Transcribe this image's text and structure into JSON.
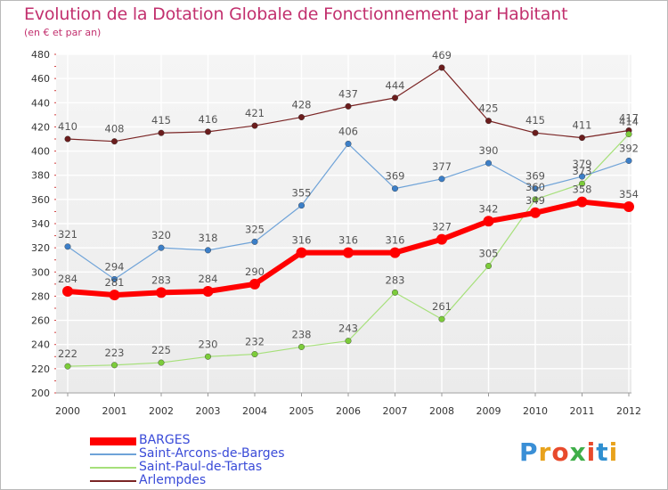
{
  "header": {
    "title": "Evolution de la Dotation Globale de Fonctionnement par Habitant",
    "subtitle": "(en € et par an)"
  },
  "logo": {
    "letters": [
      "P",
      "r",
      "o",
      "x",
      "i",
      "t",
      "i"
    ],
    "colors": [
      "#3a8fd6",
      "#e8a21c",
      "#e84a2c",
      "#3fae49",
      "#e84a2c",
      "#2f8fd0",
      "#e8a21c"
    ]
  },
  "chart_data": {
    "type": "line",
    "title": "Evolution de la Dotation Globale de Fonctionnement par Habitant",
    "subtitle": "(en € et par an)",
    "xlabel": "",
    "ylabel": "",
    "x": [
      "2000",
      "2001",
      "2002",
      "2003",
      "2004",
      "2005",
      "2006",
      "2007",
      "2008",
      "2009",
      "2010",
      "2011",
      "2012"
    ],
    "ylim": [
      200,
      480
    ],
    "yticks": [
      200,
      220,
      240,
      260,
      280,
      300,
      320,
      340,
      360,
      380,
      400,
      420,
      440,
      460,
      480
    ],
    "grid": true,
    "legend_position": "bottom-left",
    "series": [
      {
        "name": "Arlempdes",
        "color": "#7a2424",
        "marker": "#6b1d1d",
        "width": 1.2,
        "values": [
          410,
          408,
          415,
          416,
          421,
          428,
          437,
          444,
          469,
          425,
          415,
          411,
          417
        ]
      },
      {
        "name": "Saint-Paul-de-Tartas",
        "color": "#a6e07a",
        "marker": "#7ccc3a",
        "width": 1.2,
        "values": [
          222,
          223,
          225,
          230,
          232,
          238,
          243,
          283,
          261,
          305,
          360,
          373,
          414
        ]
      },
      {
        "name": "Saint-Arcons-de-Barges",
        "color": "#6fa3d8",
        "marker": "#3c7fc8",
        "width": 1.2,
        "values": [
          321,
          294,
          320,
          318,
          325,
          355,
          406,
          369,
          377,
          390,
          369,
          379,
          392
        ]
      },
      {
        "name": "BARGES",
        "color": "#ff0000",
        "marker": "#ff0000",
        "width": 6,
        "values": [
          284,
          281,
          283,
          284,
          290,
          316,
          316,
          316,
          327,
          342,
          349,
          358,
          354
        ]
      }
    ],
    "legend": [
      "BARGES",
      "Saint-Arcons-de-Barges",
      "Saint-Paul-de-Tartas",
      "Arlempdes"
    ]
  }
}
